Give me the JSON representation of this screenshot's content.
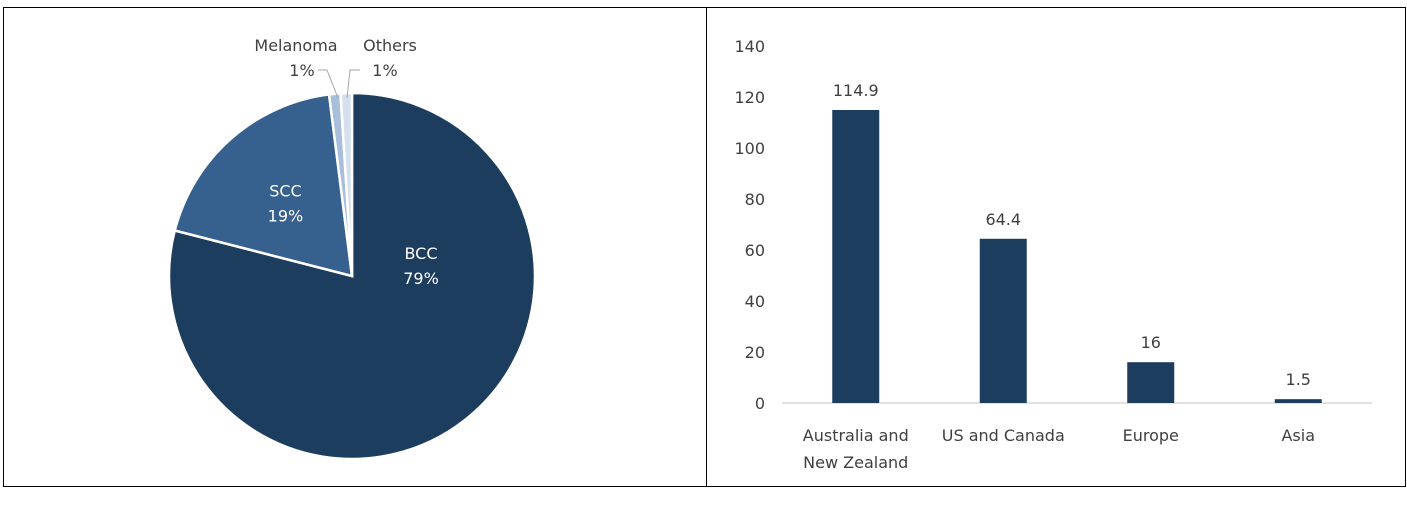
{
  "chart_data": [
    {
      "type": "pie",
      "slices": [
        {
          "label": "BCC",
          "percent_label": "79%",
          "value": 79,
          "color": "#1d3d5f",
          "label_inside": true
        },
        {
          "label": "SCC",
          "percent_label": "19%",
          "value": 19,
          "color": "#36608d",
          "label_inside": true
        },
        {
          "label": "Melanoma",
          "percent_label": "1%",
          "value": 1,
          "color": "#a9bedb",
          "label_inside": false
        },
        {
          "label": "Others",
          "percent_label": "1%",
          "value": 1,
          "color": "#d5e0ee",
          "label_inside": false
        }
      ]
    },
    {
      "type": "bar",
      "categories": [
        "Australia and New Zealand",
        "US and Canada",
        "Europe",
        "Asia"
      ],
      "category_lines": [
        [
          "Australia and",
          "New Zealand"
        ],
        [
          "US and Canada"
        ],
        [
          "Europe"
        ],
        [
          "Asia"
        ]
      ],
      "values": [
        114.9,
        64.4,
        16,
        1.5
      ],
      "value_labels": [
        "114.9",
        "64.4",
        "16",
        "1.5"
      ],
      "ylim": [
        0,
        140
      ],
      "yticks": [
        0,
        20,
        40,
        60,
        80,
        100,
        120,
        140
      ],
      "bar_color": "#1d3d5f",
      "grid": false
    }
  ]
}
